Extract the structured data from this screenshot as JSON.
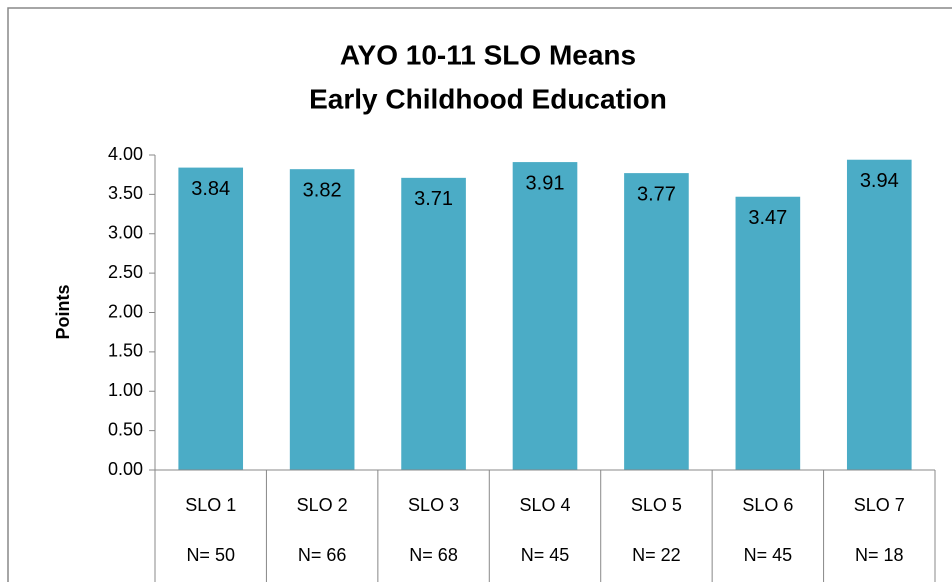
{
  "chart_data": {
    "type": "bar",
    "title": [
      "AYO 10-11 SLO Means",
      "Early Childhood Education"
    ],
    "y_label": "Points",
    "categories": [
      "SLO 1",
      "SLO 2",
      "SLO 3",
      "SLO 4",
      "SLO 5",
      "SLO 6",
      "SLO 7"
    ],
    "category_sublabels": [
      "N= 50",
      "N= 66",
      "N= 68",
      "N= 45",
      "N= 22",
      "N= 45",
      "N= 18"
    ],
    "values": [
      3.84,
      3.82,
      3.71,
      3.91,
      3.77,
      3.47,
      3.94
    ],
    "color": "#4bacc6",
    "ylim": [
      0,
      4
    ],
    "yticks": [
      {
        "value": 0,
        "label": "0.00"
      },
      {
        "value": 0.5,
        "label": "0.50"
      },
      {
        "value": 1,
        "label": "1.00"
      },
      {
        "value": 1.5,
        "label": "1.50"
      },
      {
        "value": 2,
        "label": "2.00"
      },
      {
        "value": 2.5,
        "label": "2.50"
      },
      {
        "value": 3,
        "label": "3.00"
      },
      {
        "value": 3.5,
        "label": "3.50"
      },
      {
        "value": 4,
        "label": "4.00"
      }
    ],
    "grid": false
  }
}
